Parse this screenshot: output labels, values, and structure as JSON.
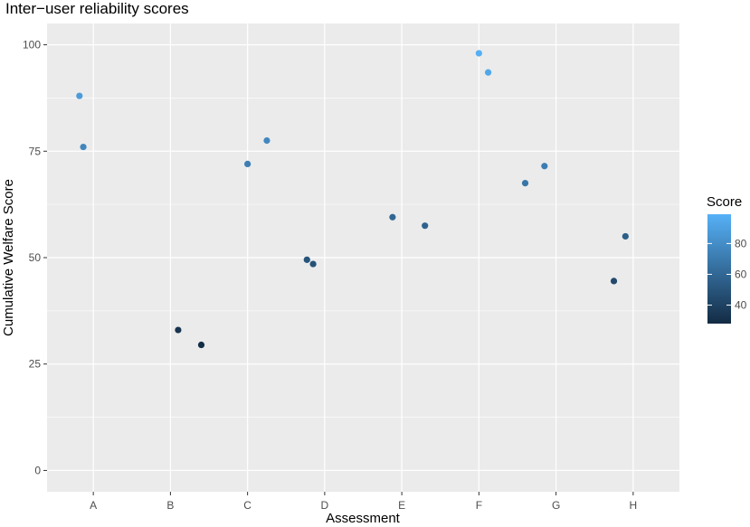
{
  "chart_data": {
    "type": "scatter",
    "title": "Inter−user reliability scores",
    "xlabel": "Assessment",
    "ylabel": "Cumulative Welfare Score",
    "categories": [
      "A",
      "B",
      "C",
      "D",
      "E",
      "F",
      "G",
      "H"
    ],
    "ylim": [
      -5,
      105
    ],
    "yticks": [
      0,
      25,
      50,
      75,
      100
    ],
    "grid": true,
    "background": "#ebebeb",
    "points": [
      {
        "category": "A",
        "offset": -0.18,
        "y": 88
      },
      {
        "category": "A",
        "offset": -0.13,
        "y": 76
      },
      {
        "category": "B",
        "offset": 0.1,
        "y": 33
      },
      {
        "category": "B",
        "offset": 0.4,
        "y": 29.5
      },
      {
        "category": "C",
        "offset": 0.0,
        "y": 72
      },
      {
        "category": "C",
        "offset": 0.25,
        "y": 77.5
      },
      {
        "category": "D",
        "offset": -0.23,
        "y": 49.5
      },
      {
        "category": "D",
        "offset": -0.15,
        "y": 48.5
      },
      {
        "category": "E",
        "offset": -0.12,
        "y": 59.5
      },
      {
        "category": "E",
        "offset": 0.3,
        "y": 57.5
      },
      {
        "category": "F",
        "offset": 0.0,
        "y": 98
      },
      {
        "category": "F",
        "offset": 0.12,
        "y": 93.5
      },
      {
        "category": "G",
        "offset": -0.4,
        "y": 67.5
      },
      {
        "category": "G",
        "offset": -0.15,
        "y": 71.5
      },
      {
        "category": "H",
        "offset": -0.25,
        "y": 44.5
      },
      {
        "category": "H",
        "offset": -0.1,
        "y": 55
      }
    ],
    "legend": {
      "title": "Score",
      "position": "right",
      "range": [
        28,
        99
      ],
      "ticks": [
        40,
        60,
        80
      ],
      "color_low": "#132b43",
      "color_high": "#56b1f7"
    }
  }
}
